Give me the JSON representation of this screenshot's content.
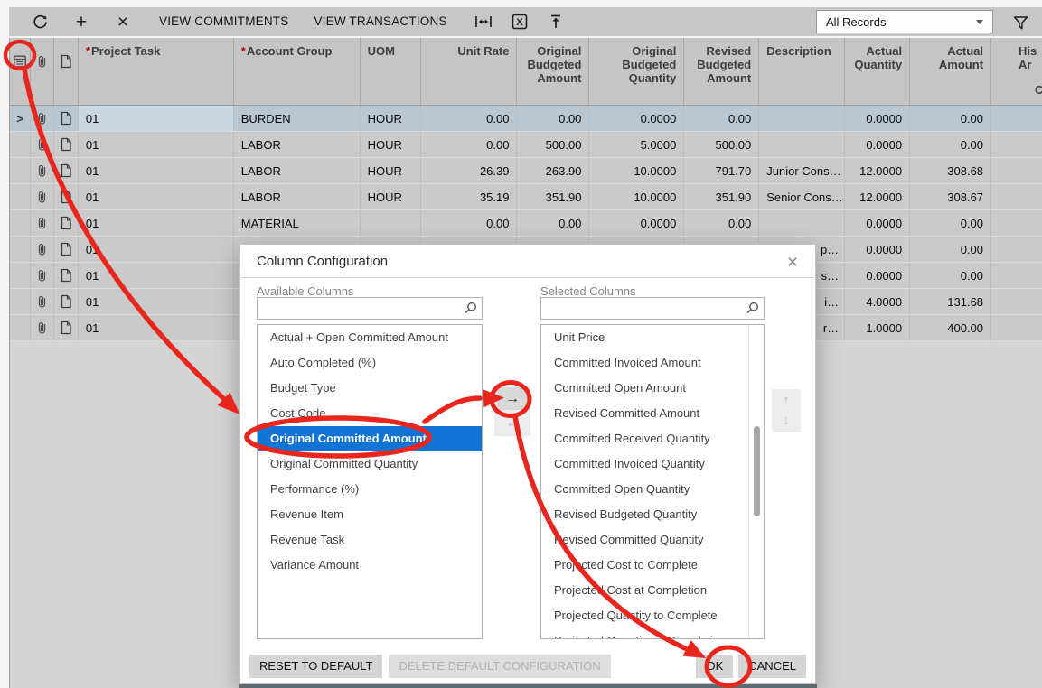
{
  "toolbar": {
    "refresh_icon": "refresh",
    "add_icon": "add",
    "delete_icon": "delete",
    "view_commitments_label": "VIEW COMMITMENTS",
    "view_transactions_label": "VIEW TRANSACTIONS",
    "fit_width_icon": "fit-to-width",
    "export_excel_icon": "export-to-excel",
    "upload_icon": "upload",
    "records_filter_value": "All Records",
    "filter_icon": "filter-funnel"
  },
  "grid": {
    "headers": {
      "project_task": "Project Task",
      "account_group": "Account Group",
      "uom": "UOM",
      "unit_rate": "Unit Rate",
      "original_budgeted_amount": "Original Budgeted Amount",
      "original_budgeted_quantity": "Original Budgeted Quantity",
      "revised_budgeted_amount": "Revised Budgeted Amount",
      "description": "Description",
      "actual_quantity": "Actual Quantity",
      "actual_amount": "Actual Amount",
      "his_line1": "His",
      "his_line2": "Ar",
      "his_line3": "C"
    },
    "rows": [
      {
        "selected": true,
        "expander": ">",
        "project_task": "01",
        "account_group": "BURDEN",
        "uom": "HOUR",
        "unit_rate": "0.00",
        "original_budgeted_amount": "0.00",
        "original_budgeted_quantity": "0.0000",
        "revised_budgeted_amount": "0.00",
        "description": "",
        "actual_quantity": "0.0000",
        "actual_amount": "0.00"
      },
      {
        "selected": false,
        "expander": "",
        "project_task": "01",
        "account_group": "LABOR",
        "uom": "HOUR",
        "unit_rate": "0.00",
        "original_budgeted_amount": "500.00",
        "original_budgeted_quantity": "5.0000",
        "revised_budgeted_amount": "500.00",
        "description": "",
        "actual_quantity": "0.0000",
        "actual_amount": "0.00"
      },
      {
        "selected": false,
        "expander": "",
        "project_task": "01",
        "account_group": "LABOR",
        "uom": "HOUR",
        "unit_rate": "26.39",
        "original_budgeted_amount": "263.90",
        "original_budgeted_quantity": "10.0000",
        "revised_budgeted_amount": "791.70",
        "description": "Junior Cons…",
        "actual_quantity": "12.0000",
        "actual_amount": "308.68"
      },
      {
        "selected": false,
        "expander": "",
        "project_task": "01",
        "account_group": "LABOR",
        "uom": "HOUR",
        "unit_rate": "35.19",
        "original_budgeted_amount": "351.90",
        "original_budgeted_quantity": "10.0000",
        "revised_budgeted_amount": "351.90",
        "description": "Senior Cons…",
        "actual_quantity": "12.0000",
        "actual_amount": "308.67"
      },
      {
        "selected": false,
        "expander": "",
        "project_task": "01",
        "account_group": "MATERIAL",
        "uom": "",
        "unit_rate": "0.00",
        "original_budgeted_amount": "0.00",
        "original_budgeted_quantity": "0.0000",
        "revised_budgeted_amount": "0.00",
        "description": "",
        "actual_quantity": "0.0000",
        "actual_amount": "0.00"
      },
      {
        "selected": false,
        "expander": "",
        "project_task": "01",
        "account_group": "",
        "uom": "",
        "unit_rate": "",
        "original_budgeted_amount": "",
        "original_budgeted_quantity": "",
        "revised_budgeted_amount": "",
        "description": "p…",
        "description_truncated": true,
        "actual_quantity": "0.0000",
        "actual_amount": "0.00"
      },
      {
        "selected": false,
        "expander": "",
        "project_task": "01",
        "account_group": "",
        "uom": "",
        "unit_rate": "",
        "original_budgeted_amount": "",
        "original_budgeted_quantity": "",
        "revised_budgeted_amount": "",
        "description": "s…",
        "description_truncated": true,
        "actual_quantity": "0.0000",
        "actual_amount": "0.00"
      },
      {
        "selected": false,
        "expander": "",
        "project_task": "01",
        "account_group": "",
        "uom": "",
        "unit_rate": "",
        "original_budgeted_amount": "",
        "original_budgeted_quantity": "",
        "revised_budgeted_amount": "",
        "description": "i…",
        "description_truncated": true,
        "actual_quantity": "4.0000",
        "actual_amount": "131.68"
      },
      {
        "selected": false,
        "expander": "",
        "project_task": "01",
        "account_group": "",
        "uom": "",
        "unit_rate": "",
        "original_budgeted_amount": "",
        "original_budgeted_quantity": "",
        "revised_budgeted_amount": "",
        "description": "r…",
        "description_truncated": true,
        "actual_quantity": "1.0000",
        "actual_amount": "400.00"
      }
    ]
  },
  "dialog": {
    "title": "Column Configuration",
    "close_icon": "close",
    "available": {
      "label": "Available Columns",
      "search_value": "",
      "items": [
        "Actual + Open Committed Amount",
        "Auto Completed (%)",
        "Budget Type",
        "Cost Code",
        "Original Committed Amount",
        "Original Committed Quantity",
        "Performance (%)",
        "Revenue Item",
        "Revenue Task",
        "Variance Amount"
      ],
      "selected_index": 4,
      "selected_item": "Original Committed Amount"
    },
    "selected": {
      "label": "Selected Columns",
      "search_value": "",
      "items": [
        "Unit Price",
        "Committed Invoiced Amount",
        "Committed Open Amount",
        "Revised Committed Amount",
        "Committed Received Quantity",
        "Committed Invoiced Quantity",
        "Committed Open Quantity",
        "Revised Budgeted Quantity",
        "Revised Committed Quantity",
        "Projected Cost to Complete",
        "Projected Cost at Completion",
        "Projected Quantity to Complete",
        "Projected Quantity at Completion"
      ],
      "selected_index": -1
    },
    "move_right_icon": "→",
    "move_left_icon": "←",
    "move_up_icon": "↑",
    "move_down_icon": "↓",
    "footer": {
      "reset_label": "RESET TO DEFAULT",
      "delete_label": "DELETE DEFAULT CONFIGURATION",
      "ok_label": "OK",
      "cancel_label": "CANCEL"
    }
  },
  "colors": {
    "annotation_red": "#e8261d",
    "selection_blue": "#1173d4",
    "selected_row": "#b8c7d1",
    "toolbar_gray": "#c7c7c7"
  }
}
